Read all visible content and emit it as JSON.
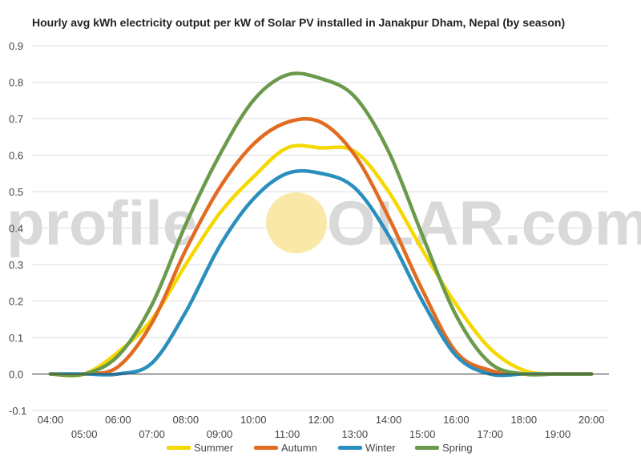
{
  "chart_data": {
    "type": "line",
    "title": "Hourly avg kWh electricity output per kW of Solar PV installed in Janakpur Dham, Nepal (by season)",
    "xlabel": "",
    "ylabel": "",
    "ylim": [
      -0.1,
      0.9
    ],
    "yticks": [
      "-0.1",
      "0.0",
      "0.1",
      "0.2",
      "0.3",
      "0.4",
      "0.5",
      "0.6",
      "0.7",
      "0.8",
      "0.9"
    ],
    "x": [
      "04:00",
      "05:00",
      "06:00",
      "07:00",
      "08:00",
      "09:00",
      "10:00",
      "11:00",
      "12:00",
      "13:00",
      "14:00",
      "15:00",
      "16:00",
      "17:00",
      "18:00",
      "19:00",
      "20:00"
    ],
    "grid": true,
    "legend": "bottom",
    "series": [
      {
        "name": "Summer",
        "color": "#f5d800",
        "values": [
          0.0,
          0.0,
          0.06,
          0.15,
          0.3,
          0.44,
          0.54,
          0.62,
          0.62,
          0.61,
          0.5,
          0.34,
          0.19,
          0.07,
          0.01,
          0.0,
          0.0
        ]
      },
      {
        "name": "Autumn",
        "color": "#e26b22",
        "values": [
          0.0,
          0.0,
          0.02,
          0.14,
          0.34,
          0.51,
          0.63,
          0.69,
          0.69,
          0.6,
          0.43,
          0.23,
          0.06,
          0.01,
          0.0,
          0.0,
          0.0
        ]
      },
      {
        "name": "Winter",
        "color": "#2a8fbd",
        "values": [
          0.0,
          0.0,
          0.0,
          0.03,
          0.17,
          0.35,
          0.48,
          0.55,
          0.55,
          0.51,
          0.38,
          0.2,
          0.05,
          0.0,
          0.0,
          0.0,
          0.0
        ]
      },
      {
        "name": "Spring",
        "color": "#6b9a4c",
        "values": [
          0.0,
          0.0,
          0.05,
          0.19,
          0.41,
          0.6,
          0.75,
          0.82,
          0.81,
          0.76,
          0.61,
          0.38,
          0.16,
          0.03,
          0.0,
          0.0,
          0.0
        ]
      }
    ]
  },
  "watermark": {
    "left": "profile",
    "right": "OLAR.com",
    "sun_color": "#f9e8a8"
  }
}
